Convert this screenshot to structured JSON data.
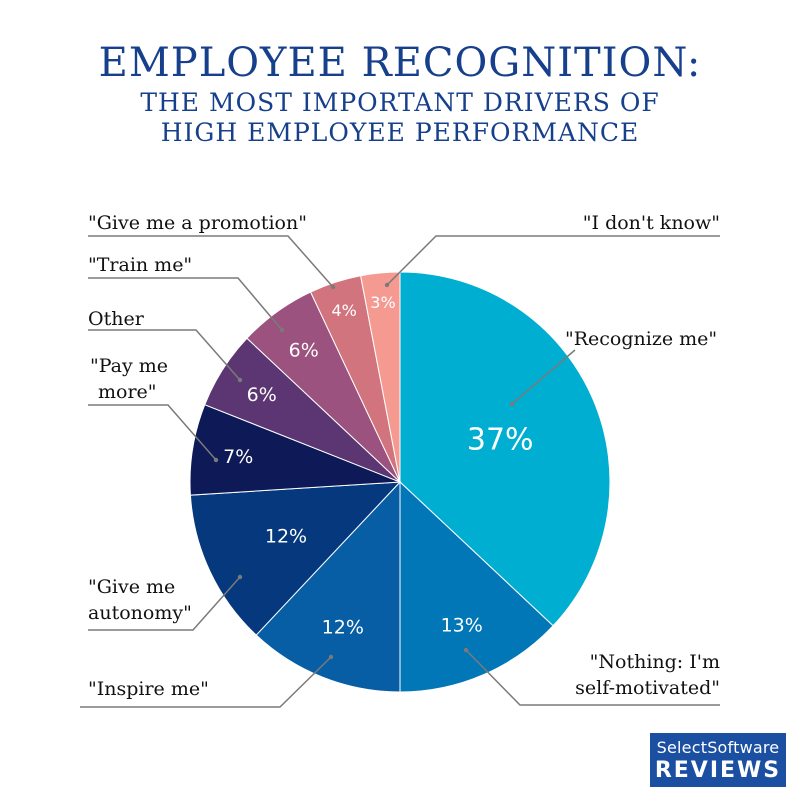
{
  "header": {
    "title": "EMPLOYEE RECOGNITION:",
    "subtitle_line1": "THE MOST IMPORTANT DRIVERS OF",
    "subtitle_line2": "HIGH EMPLOYEE PERFORMANCE"
  },
  "logo": {
    "line1": "SelectSoftware",
    "line2": "REVIEWS"
  },
  "chart_data": {
    "type": "pie",
    "slices": [
      {
        "label": "\"Recognize me\"",
        "value": 37,
        "display": "37%",
        "color": "#00aed1"
      },
      {
        "label": "\"Nothing: I'm self-motivated\"",
        "value": 13,
        "display": "13%",
        "color": "#0277b8"
      },
      {
        "label": "\"Inspire me\"",
        "value": 12,
        "display": "12%",
        "color": "#075ea4"
      },
      {
        "label": "\"Give me autonomy\"",
        "value": 12,
        "display": "12%",
        "color": "#06387e"
      },
      {
        "label": "\"Pay me more\"",
        "value": 7,
        "display": "7%",
        "color": "#0e1a57"
      },
      {
        "label": "Other",
        "value": 6,
        "display": "6%",
        "color": "#5b3672"
      },
      {
        "label": "\"Train me\"",
        "value": 6,
        "display": "6%",
        "color": "#9c527e"
      },
      {
        "label": "\"Give me a promotion\"",
        "value": 4,
        "display": "4%",
        "color": "#d2747d"
      },
      {
        "label": "\"I don't know\"",
        "value": 3,
        "display": "3%",
        "color": "#f59a91"
      }
    ]
  }
}
